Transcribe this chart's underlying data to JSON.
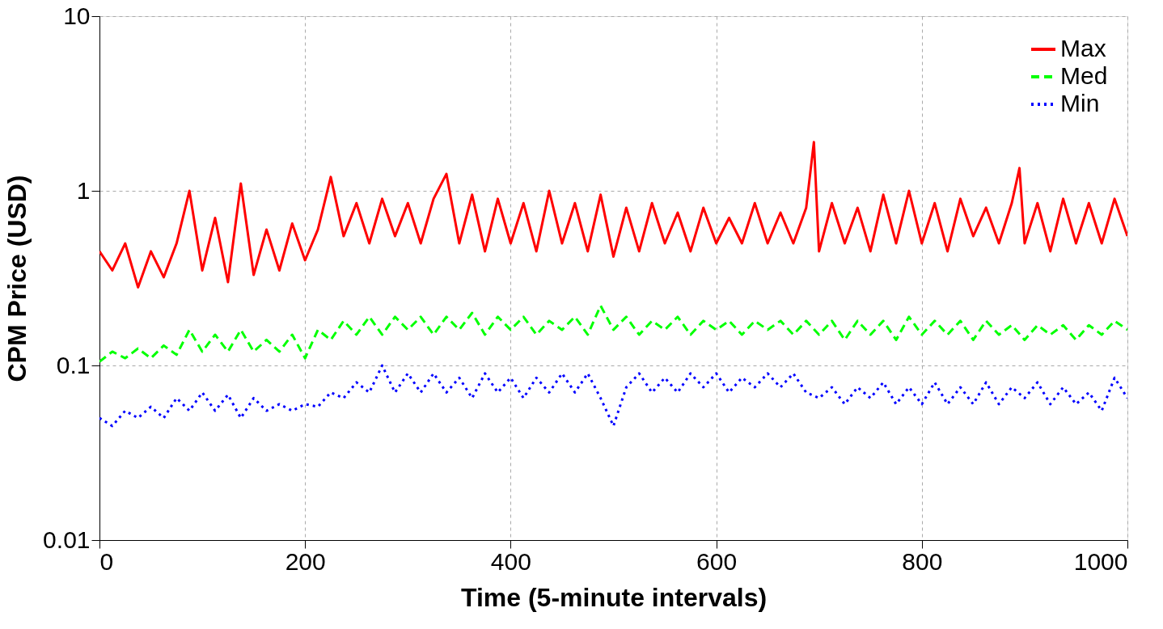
{
  "chart_data": {
    "type": "line",
    "xlabel": "Time (5-minute intervals)",
    "ylabel": "CPM Price (USD)",
    "xlim": [
      0,
      1000
    ],
    "xticks": [
      0,
      200,
      400,
      600,
      800,
      1000
    ],
    "ylim": [
      0.01,
      10
    ],
    "yticks": [
      0.01,
      0.1,
      1,
      10
    ],
    "log": true,
    "grid": true,
    "legend": "top right",
    "series": [
      {
        "name": "Max",
        "color": "#ff0000",
        "line_style": "solid",
        "x": [
          0,
          12.5,
          25,
          37.5,
          50,
          62.5,
          75,
          87.5,
          100,
          112.5,
          125,
          137.5,
          150,
          162.5,
          175,
          187.5,
          200,
          212.5,
          225,
          237.5,
          250,
          262.5,
          275,
          287.5,
          300,
          312.5,
          325,
          337.5,
          350,
          362.5,
          375,
          387.5,
          400,
          412.5,
          425,
          437.5,
          450,
          462.5,
          475,
          487.5,
          500,
          512.5,
          525,
          537.5,
          550,
          562.5,
          575,
          587.5,
          600,
          612.5,
          625,
          637.5,
          650,
          662.5,
          675,
          687.5,
          695,
          700,
          712.5,
          725,
          737.5,
          750,
          762.5,
          775,
          787.5,
          800,
          812.5,
          825,
          837.5,
          850,
          862.5,
          875,
          887.5,
          895,
          900,
          912.5,
          925,
          937.5,
          950,
          962.5,
          975,
          987.5,
          1000
        ],
        "values": [
          0.45,
          0.35,
          0.5,
          0.28,
          0.45,
          0.32,
          0.5,
          1.0,
          0.35,
          0.7,
          0.3,
          1.1,
          0.33,
          0.6,
          0.35,
          0.65,
          0.4,
          0.6,
          1.2,
          0.55,
          0.85,
          0.5,
          0.9,
          0.55,
          0.85,
          0.5,
          0.9,
          1.25,
          0.5,
          0.95,
          0.45,
          0.9,
          0.5,
          0.85,
          0.45,
          1.0,
          0.5,
          0.85,
          0.45,
          0.95,
          0.42,
          0.8,
          0.45,
          0.85,
          0.5,
          0.75,
          0.45,
          0.8,
          0.5,
          0.7,
          0.5,
          0.85,
          0.5,
          0.75,
          0.5,
          0.8,
          1.9,
          0.45,
          0.85,
          0.5,
          0.8,
          0.45,
          0.95,
          0.5,
          1.0,
          0.5,
          0.85,
          0.45,
          0.9,
          0.55,
          0.8,
          0.5,
          0.85,
          1.35,
          0.5,
          0.85,
          0.45,
          0.9,
          0.5,
          0.85,
          0.5,
          0.9,
          0.55
        ]
      },
      {
        "name": "Med",
        "color": "#00ff00",
        "line_style": "dashed",
        "x": [
          0,
          12.5,
          25,
          37.5,
          50,
          62.5,
          75,
          87.5,
          100,
          112.5,
          125,
          137.5,
          150,
          162.5,
          175,
          187.5,
          200,
          212.5,
          225,
          237.5,
          250,
          262.5,
          275,
          287.5,
          300,
          312.5,
          325,
          337.5,
          350,
          362.5,
          375,
          387.5,
          400,
          412.5,
          425,
          437.5,
          450,
          462.5,
          475,
          487.5,
          500,
          512.5,
          525,
          537.5,
          550,
          562.5,
          575,
          587.5,
          600,
          612.5,
          625,
          637.5,
          650,
          662.5,
          675,
          687.5,
          700,
          712.5,
          725,
          737.5,
          750,
          762.5,
          775,
          787.5,
          800,
          812.5,
          825,
          837.5,
          850,
          862.5,
          875,
          887.5,
          900,
          912.5,
          925,
          937.5,
          950,
          962.5,
          975,
          987.5,
          1000
        ],
        "values": [
          0.105,
          0.12,
          0.11,
          0.125,
          0.11,
          0.13,
          0.115,
          0.16,
          0.12,
          0.15,
          0.12,
          0.16,
          0.12,
          0.14,
          0.12,
          0.15,
          0.11,
          0.16,
          0.14,
          0.18,
          0.15,
          0.19,
          0.15,
          0.19,
          0.16,
          0.19,
          0.15,
          0.19,
          0.16,
          0.2,
          0.15,
          0.19,
          0.16,
          0.19,
          0.15,
          0.18,
          0.16,
          0.19,
          0.15,
          0.22,
          0.16,
          0.19,
          0.15,
          0.18,
          0.16,
          0.19,
          0.15,
          0.18,
          0.16,
          0.18,
          0.15,
          0.18,
          0.16,
          0.18,
          0.15,
          0.18,
          0.15,
          0.18,
          0.14,
          0.18,
          0.15,
          0.18,
          0.14,
          0.19,
          0.15,
          0.18,
          0.15,
          0.18,
          0.14,
          0.18,
          0.15,
          0.17,
          0.14,
          0.17,
          0.15,
          0.17,
          0.14,
          0.17,
          0.15,
          0.18,
          0.16
        ]
      },
      {
        "name": "Min",
        "color": "#0000ff",
        "line_style": "dotted",
        "x": [
          0,
          12.5,
          25,
          37.5,
          50,
          62.5,
          75,
          87.5,
          100,
          112.5,
          125,
          137.5,
          150,
          162.5,
          175,
          187.5,
          200,
          212.5,
          225,
          237.5,
          250,
          262.5,
          275,
          287.5,
          300,
          312.5,
          325,
          337.5,
          350,
          362.5,
          375,
          387.5,
          400,
          412.5,
          425,
          437.5,
          450,
          462.5,
          475,
          487.5,
          500,
          512.5,
          525,
          537.5,
          550,
          562.5,
          575,
          587.5,
          600,
          612.5,
          625,
          637.5,
          650,
          662.5,
          675,
          687.5,
          700,
          712.5,
          725,
          737.5,
          750,
          762.5,
          775,
          787.5,
          800,
          812.5,
          825,
          837.5,
          850,
          862.5,
          875,
          887.5,
          900,
          912.5,
          925,
          937.5,
          950,
          962.5,
          975,
          987.5,
          1000
        ],
        "values": [
          0.05,
          0.045,
          0.055,
          0.05,
          0.058,
          0.05,
          0.065,
          0.055,
          0.07,
          0.055,
          0.068,
          0.05,
          0.065,
          0.055,
          0.06,
          0.055,
          0.06,
          0.058,
          0.07,
          0.065,
          0.08,
          0.07,
          0.1,
          0.07,
          0.09,
          0.07,
          0.09,
          0.07,
          0.085,
          0.065,
          0.09,
          0.07,
          0.085,
          0.065,
          0.085,
          0.07,
          0.09,
          0.07,
          0.09,
          0.065,
          0.045,
          0.075,
          0.09,
          0.07,
          0.085,
          0.07,
          0.09,
          0.075,
          0.09,
          0.07,
          0.085,
          0.075,
          0.09,
          0.075,
          0.09,
          0.07,
          0.065,
          0.075,
          0.06,
          0.075,
          0.065,
          0.08,
          0.06,
          0.075,
          0.06,
          0.08,
          0.06,
          0.075,
          0.06,
          0.08,
          0.06,
          0.075,
          0.065,
          0.08,
          0.06,
          0.075,
          0.06,
          0.07,
          0.055,
          0.085,
          0.065
        ]
      }
    ]
  }
}
